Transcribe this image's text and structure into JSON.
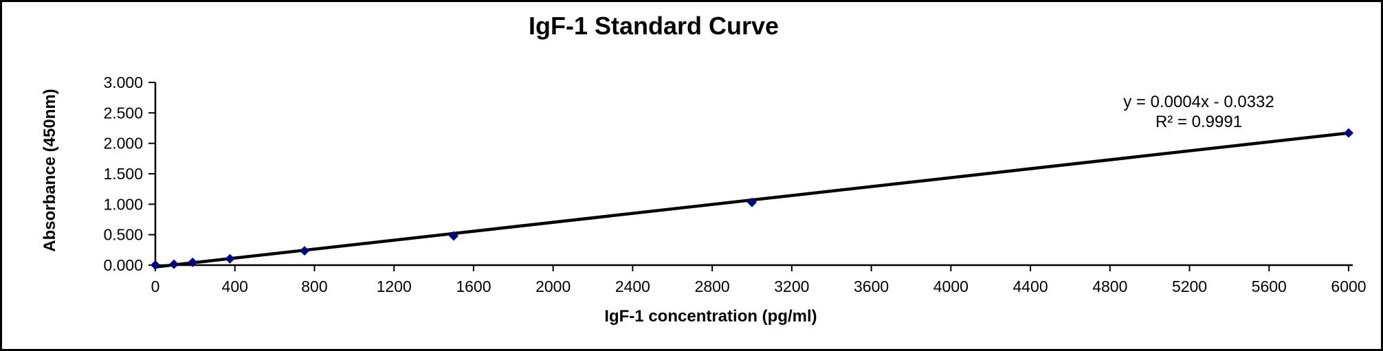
{
  "window": {
    "background_color": "#ffffff",
    "border_color": "#000000"
  },
  "chart_data": {
    "type": "scatter",
    "title": "IgF-1 Standard Curve",
    "xlabel": "IgF-1 concentration (pg/ml)",
    "ylabel": "Absorbance (450nm)",
    "xlim": [
      0,
      6000
    ],
    "ylim": [
      0,
      3
    ],
    "grid": false,
    "legend": false,
    "x_tick_values": [
      0,
      400,
      800,
      1200,
      1600,
      2000,
      2400,
      2800,
      3200,
      3600,
      4000,
      4400,
      4800,
      5200,
      5600,
      6000
    ],
    "y_tick_values": [
      0,
      0.5,
      1,
      1.5,
      2,
      2.5,
      3
    ],
    "y_tick_labels": [
      "0.000",
      "0.500",
      "1.000",
      "1.500",
      "2.000",
      "2.500",
      "3.000"
    ],
    "series": [
      {
        "x": [
          0,
          93.75,
          187.5,
          375,
          750,
          1500,
          3000,
          6000
        ],
        "y": [
          0.002,
          0.015,
          0.045,
          0.105,
          0.235,
          0.48,
          1.03,
          2.17
        ]
      }
    ],
    "trendline": {
      "equation_label": "y = 0.0004x - 0.0332",
      "r2_label": "R² = 0.9991",
      "draw_from": [
        0,
        -0.03
      ],
      "draw_to": [
        6000,
        2.17
      ]
    },
    "colors": {
      "marker": "#000080",
      "trendline": "#000000",
      "axis": "#000000",
      "text": "#000000"
    },
    "marker_shape": "diamond"
  }
}
